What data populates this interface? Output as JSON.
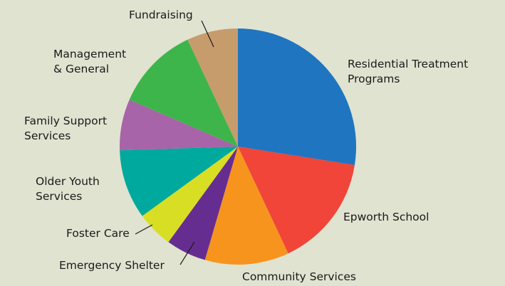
{
  "chart_data": {
    "type": "pie",
    "title": "",
    "slices": [
      {
        "label": "Residential Treatment Programs",
        "lines": [
          "Residential Treatment",
          "Programs"
        ],
        "value": 27.5,
        "color": "#1f75c0"
      },
      {
        "label": "Epworth School",
        "lines": [
          "Epworth School"
        ],
        "value": 15.5,
        "color": "#f04538"
      },
      {
        "label": "Community Services",
        "lines": [
          "Community Services"
        ],
        "value": 11.5,
        "color": "#f7941e"
      },
      {
        "label": "Emergency Shelter",
        "lines": [
          "Emergency Shelter"
        ],
        "value": 5.5,
        "color": "#662d91"
      },
      {
        "label": "Foster Care",
        "lines": [
          "Foster Care"
        ],
        "value": 5.0,
        "color": "#d8de24"
      },
      {
        "label": "Older Youth Services",
        "lines": [
          "Older Youth",
          "Services"
        ],
        "value": 9.5,
        "color": "#00a99d"
      },
      {
        "label": "Family Support Services",
        "lines": [
          "Family Support",
          "Services"
        ],
        "value": 7.0,
        "color": "#a864a8"
      },
      {
        "label": "Management & General",
        "lines": [
          "Management",
          "& General"
        ],
        "value": 11.5,
        "color": "#3db54a"
      },
      {
        "label": "Fundraising",
        "lines": [
          "Fundraising"
        ],
        "value": 7.0,
        "color": "#c69c6d"
      }
    ]
  }
}
